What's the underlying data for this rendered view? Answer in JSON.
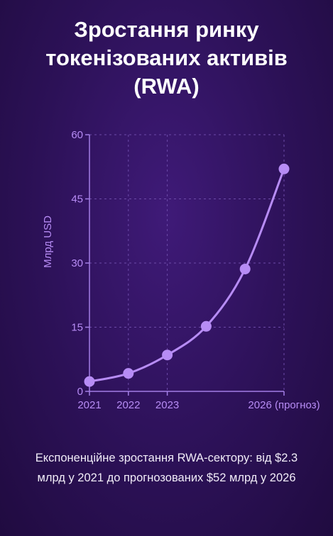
{
  "title_lines": [
    "Зростання ринку",
    "токенізованих активів",
    "(RWA)"
  ],
  "caption": "Експоненційне зростання RWA-сектору: від $2.3 млрд у 2021 до прогнозованих $52 млрд у 2026",
  "colors": {
    "accent": "#b78cf5",
    "axis": "#a37ee6",
    "grid": "#6c4aa8",
    "text": "#ffffff"
  },
  "chart_data": {
    "type": "line",
    "title": "Зростання ринку токенізованих активів (RWA)",
    "xlabel": "",
    "ylabel": "Млрд USD",
    "x": [
      2021,
      2022,
      2023,
      2024,
      2025,
      2026
    ],
    "values": [
      2.3,
      4.2,
      8.5,
      15.2,
      28.6,
      52
    ],
    "ylim": [
      0,
      60
    ],
    "xlim": [
      2021,
      2026
    ],
    "yticks": [
      0,
      15,
      30,
      45,
      60
    ],
    "xticks": [
      {
        "x": 2021,
        "label": "2021"
      },
      {
        "x": 2022,
        "label": "2022"
      },
      {
        "x": 2023,
        "label": "2023"
      },
      {
        "x": 2026,
        "label": "2026 (прогноз)"
      }
    ],
    "grid": true,
    "smooth": true
  }
}
